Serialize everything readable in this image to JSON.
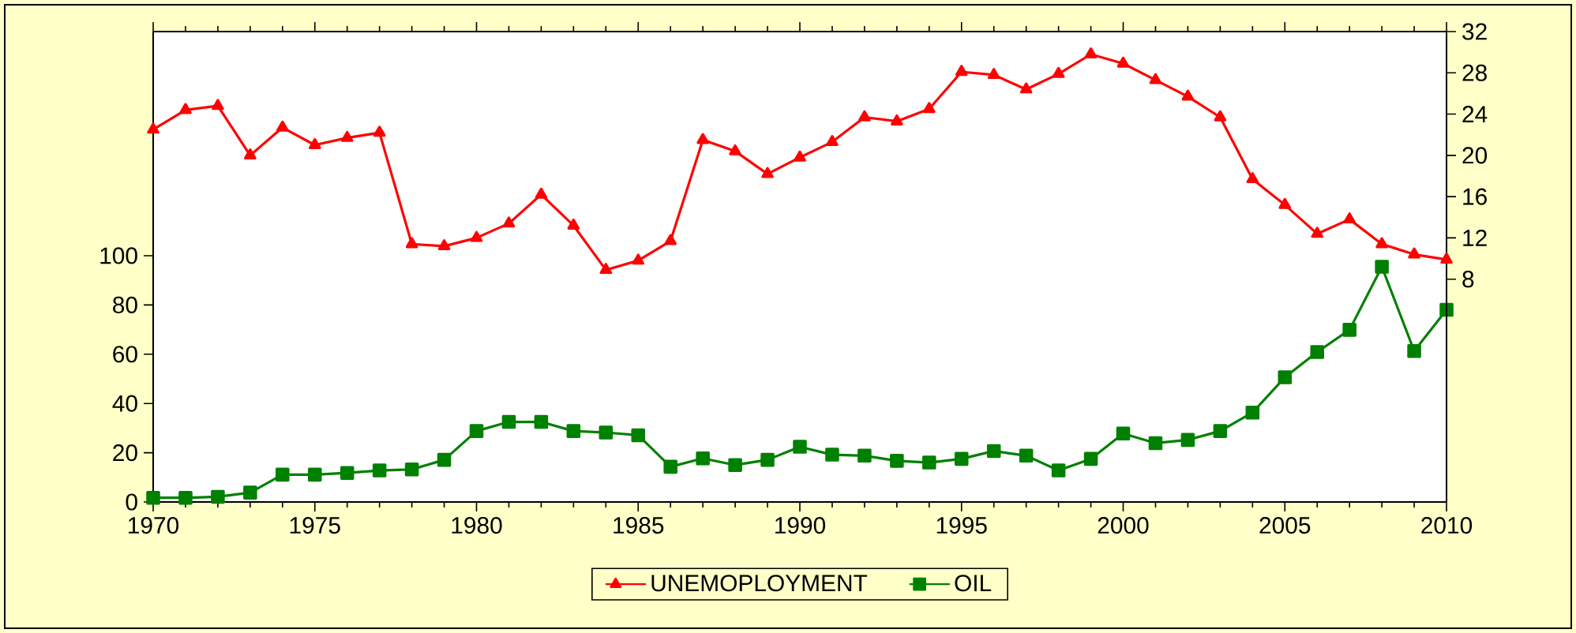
{
  "chart_data": {
    "type": "line",
    "x": [
      1970,
      1971,
      1972,
      1973,
      1974,
      1975,
      1976,
      1977,
      1978,
      1979,
      1980,
      1981,
      1982,
      1983,
      1984,
      1985,
      1986,
      1987,
      1988,
      1989,
      1990,
      1991,
      1992,
      1993,
      1994,
      1995,
      1996,
      1997,
      1998,
      1999,
      2000,
      2001,
      2002,
      2003,
      2004,
      2005,
      2006,
      2007,
      2008,
      2009,
      2010
    ],
    "series": [
      {
        "name": "UNEMOPLOYMENT",
        "color": "#ff0000",
        "axis": "y2",
        "marker": "triangle",
        "values": [
          22.5,
          24.4,
          24.8,
          20.0,
          22.7,
          21.0,
          21.7,
          22.2,
          11.4,
          11.2,
          12.0,
          13.4,
          16.2,
          13.2,
          8.9,
          9.8,
          11.7,
          21.5,
          20.4,
          18.2,
          19.8,
          21.3,
          23.7,
          23.3,
          24.5,
          28.1,
          27.8,
          26.4,
          27.9,
          29.8,
          28.9,
          27.3,
          25.7,
          23.7,
          17.7,
          15.2,
          12.4,
          13.8,
          11.4,
          10.4,
          9.9
        ]
      },
      {
        "name": "OIL",
        "color": "#008000",
        "marker": "square",
        "values": [
          1.7,
          1.7,
          2.1,
          3.8,
          11.1,
          11.1,
          11.8,
          12.8,
          13.2,
          17.1,
          28.8,
          32.5,
          32.5,
          28.8,
          28.2,
          27.1,
          14.3,
          17.7,
          15.0,
          17.1,
          22.4,
          19.2,
          18.8,
          16.7,
          16.0,
          17.5,
          20.7,
          18.8,
          12.8,
          17.5,
          27.8,
          23.9,
          25.2,
          28.8,
          36.3,
          50.6,
          60.9,
          69.9,
          95.5,
          61.3,
          78.0
        ]
      }
    ],
    "xlim": [
      1970,
      2010
    ],
    "xticks": [
      1970,
      1975,
      1980,
      1985,
      1990,
      1995,
      2000,
      2005,
      2010
    ],
    "ylim": [
      0,
      191
    ],
    "yticks": [
      0,
      20,
      40,
      60,
      80,
      100
    ],
    "y2lim": [
      -13.6,
      32
    ],
    "y2ticks": [
      8,
      12,
      16,
      20,
      24,
      28,
      32
    ],
    "legend": "bottom",
    "line_style": "solid"
  }
}
